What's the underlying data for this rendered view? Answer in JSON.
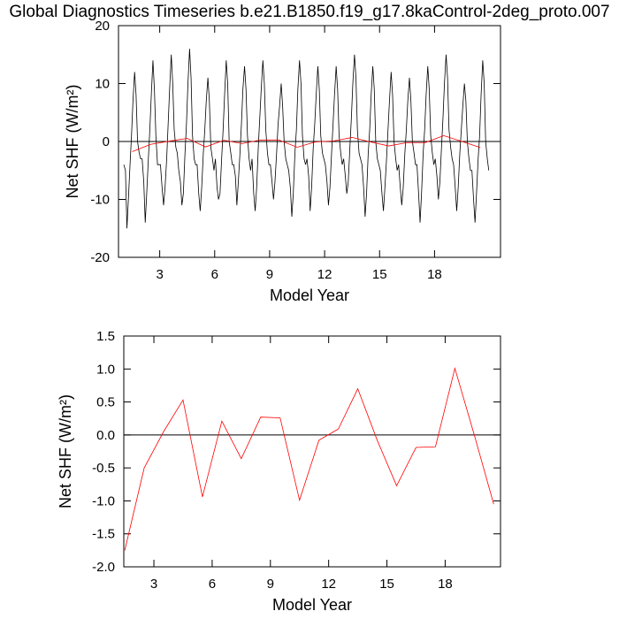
{
  "chart_data": [
    {
      "type": "line",
      "title": "Global Diagnostics Timeseries b.e21.B1850.f19_g17.8kaControl-2deg_proto.007",
      "xlabel": "Model Year",
      "ylabel": "Net SHF (W/m²)",
      "xlim": [
        0.75,
        21.6
      ],
      "xticks": [
        3,
        6,
        9,
        12,
        15,
        18
      ],
      "ylim": [
        -20,
        20
      ],
      "yticks": [
        -20,
        -10,
        0,
        10,
        20
      ],
      "hline": 0,
      "series": [
        {
          "color": "#000000",
          "x": [
            1.04,
            1.13,
            1.21,
            1.29,
            1.38,
            1.46,
            1.54,
            1.63,
            1.71,
            1.79,
            1.88,
            1.96,
            2.04,
            2.13,
            2.21,
            2.29,
            2.38,
            2.46,
            2.54,
            2.63,
            2.71,
            2.79,
            2.88,
            2.96,
            3.04,
            3.13,
            3.21,
            3.29,
            3.38,
            3.46,
            3.54,
            3.63,
            3.71,
            3.79,
            3.88,
            3.96,
            4.04,
            4.13,
            4.21,
            4.29,
            4.38,
            4.46,
            4.54,
            4.63,
            4.71,
            4.79,
            4.88,
            4.96,
            5.04,
            5.13,
            5.21,
            5.29,
            5.38,
            5.46,
            5.54,
            5.63,
            5.71,
            5.79,
            5.88,
            5.96,
            6.04,
            6.13,
            6.21,
            6.29,
            6.38,
            6.46,
            6.54,
            6.63,
            6.71,
            6.79,
            6.88,
            6.96,
            7.04,
            7.13,
            7.21,
            7.29,
            7.38,
            7.46,
            7.54,
            7.63,
            7.71,
            7.79,
            7.88,
            7.96,
            8.04,
            8.13,
            8.21,
            8.29,
            8.38,
            8.46,
            8.54,
            8.63,
            8.71,
            8.79,
            8.88,
            8.96,
            9.04,
            9.13,
            9.21,
            9.29,
            9.38,
            9.46,
            9.54,
            9.63,
            9.71,
            9.79,
            9.88,
            9.96,
            10.04,
            10.13,
            10.21,
            10.29,
            10.38,
            10.46,
            10.54,
            10.63,
            10.71,
            10.79,
            10.88,
            10.96,
            11.04,
            11.13,
            11.21,
            11.29,
            11.38,
            11.46,
            11.54,
            11.63,
            11.71,
            11.79,
            11.88,
            11.96,
            12.04,
            12.13,
            12.21,
            12.29,
            12.38,
            12.46,
            12.54,
            12.63,
            12.71,
            12.79,
            12.88,
            12.96,
            13.04,
            13.13,
            13.21,
            13.29,
            13.38,
            13.46,
            13.54,
            13.63,
            13.71,
            13.79,
            13.88,
            13.96,
            14.04,
            14.13,
            14.21,
            14.29,
            14.38,
            14.46,
            14.54,
            14.63,
            14.71,
            14.79,
            14.88,
            14.96,
            15.04,
            15.13,
            15.21,
            15.29,
            15.38,
            15.46,
            15.54,
            15.63,
            15.71,
            15.79,
            15.88,
            15.96,
            16.04,
            16.13,
            16.21,
            16.29,
            16.38,
            16.46,
            16.54,
            16.63,
            16.71,
            16.79,
            16.88,
            16.96,
            17.04,
            17.13,
            17.21,
            17.29,
            17.38,
            17.46,
            17.54,
            17.63,
            17.71,
            17.79,
            17.88,
            17.96,
            18.04,
            18.13,
            18.21,
            18.29,
            18.38,
            18.46,
            18.54,
            18.63,
            18.71,
            18.79,
            18.88,
            18.96,
            19.04,
            19.13,
            19.21,
            19.29,
            19.38,
            19.46,
            19.54,
            19.63,
            19.71,
            19.79,
            19.88,
            19.96,
            20.04,
            20.13,
            20.21,
            20.29,
            20.38,
            20.46,
            20.54,
            20.63,
            20.71,
            20.79,
            20.88,
            20.96
          ],
          "values": [
            -4,
            -5,
            -15,
            -10,
            -4,
            1,
            7,
            12,
            8,
            0,
            -2,
            -3,
            -3,
            -7,
            -14,
            -9,
            -3,
            2,
            8,
            14,
            9,
            1,
            -4,
            -4,
            -4,
            -8,
            -11,
            -8,
            -3,
            3,
            9,
            15,
            10,
            2,
            -1,
            -2,
            -5,
            -7,
            -11,
            -9,
            -2,
            3,
            10,
            16,
            11,
            1,
            -3,
            -4,
            -4,
            -9,
            -12,
            -8,
            -2,
            2,
            7,
            11,
            7,
            -1,
            -3,
            -5,
            -3,
            -8,
            -10,
            -9,
            -3,
            2,
            8,
            14,
            10,
            0,
            -2,
            -4,
            -4,
            -6,
            -11,
            -7,
            -2,
            3,
            9,
            13,
            9,
            1,
            -3,
            -5,
            -3,
            -9,
            -12,
            -8,
            -1,
            4,
            9,
            14,
            10,
            2,
            -2,
            -4,
            -4,
            -7,
            -10,
            -7,
            -2,
            3,
            6,
            10,
            6,
            0,
            -3,
            -4,
            -5,
            -8,
            -13,
            -9,
            -2,
            2,
            9,
            14,
            10,
            1,
            -3,
            -4,
            -3,
            -6,
            -12,
            -8,
            -1,
            3,
            8,
            13,
            9,
            1,
            -2,
            -3,
            -4,
            -7,
            -11,
            -8,
            -2,
            3,
            8,
            13,
            9,
            1,
            -2,
            -4,
            -3,
            -6,
            -9,
            -7,
            -1,
            4,
            10,
            15,
            11,
            2,
            -2,
            -3,
            -4,
            -8,
            -13,
            -9,
            -2,
            2,
            8,
            13,
            9,
            0,
            -3,
            -4,
            -5,
            -9,
            -12,
            -8,
            -3,
            2,
            7,
            12,
            8,
            0,
            -3,
            -5,
            -4,
            -8,
            -11,
            -8,
            -2,
            2,
            7,
            11,
            7,
            0,
            -2,
            -4,
            -4,
            -9,
            -14,
            -9,
            -2,
            2,
            8,
            13,
            9,
            1,
            -2,
            -4,
            -3,
            -6,
            -10,
            -7,
            -1,
            4,
            10,
            15,
            11,
            2,
            -1,
            -3,
            -4,
            -8,
            -12,
            -8,
            -2,
            2,
            6,
            10,
            7,
            0,
            -3,
            -5,
            -5,
            -10,
            -14,
            -9,
            -3,
            1,
            8,
            14,
            10,
            0,
            -3,
            -5
          ]
        },
        {
          "color": "#ff0000",
          "x": [
            1.5,
            2.5,
            3.5,
            4.5,
            5.5,
            6.5,
            7.5,
            8.5,
            9.5,
            10.5,
            11.5,
            12.5,
            13.5,
            14.5,
            15.5,
            16.5,
            17.5,
            18.5,
            19.5,
            20.5
          ],
          "values": [
            -1.75,
            -0.5,
            0.05,
            0.53,
            -0.94,
            0.21,
            -0.36,
            0.27,
            0.26,
            -0.99,
            -0.08,
            0.09,
            0.7,
            -0.08,
            -0.77,
            -0.19,
            -0.18,
            1.01,
            0.0,
            -1.05
          ]
        }
      ]
    },
    {
      "type": "line",
      "xlabel": "Model Year",
      "ylabel": "Net SHF (W/m²)",
      "xlim": [
        1.45,
        20.85
      ],
      "xticks": [
        3,
        6,
        9,
        12,
        15,
        18
      ],
      "ylim": [
        -2,
        1.5
      ],
      "yticks": [
        {
          "value": -2,
          "label": "-2.0"
        },
        -1.5,
        {
          "value": -1,
          "label": "-1.0"
        },
        -0.5,
        {
          "value": 0,
          "label": "0.0"
        },
        0.5,
        {
          "value": 1,
          "label": "1.0"
        },
        1.5
      ],
      "hline": 0,
      "series": [
        {
          "color": "#ff0000",
          "x": [
            1.5,
            2.5,
            3.5,
            4.5,
            5.5,
            6.5,
            7.5,
            8.5,
            9.5,
            10.5,
            11.5,
            12.5,
            13.5,
            14.5,
            15.5,
            16.5,
            17.5,
            18.5,
            19.5,
            20.5
          ],
          "values": [
            -1.75,
            -0.5,
            0.05,
            0.53,
            -0.94,
            0.21,
            -0.36,
            0.27,
            0.26,
            -0.99,
            -0.08,
            0.09,
            0.7,
            -0.08,
            -0.77,
            -0.19,
            -0.18,
            1.01,
            0.0,
            -1.05
          ]
        }
      ]
    }
  ]
}
